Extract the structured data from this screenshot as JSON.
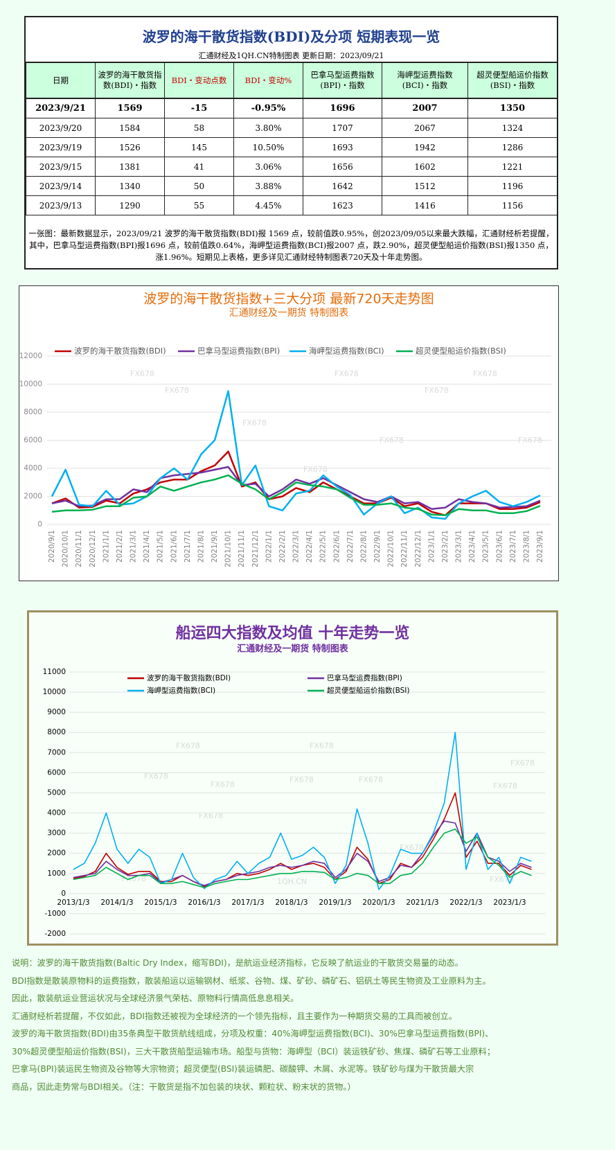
{
  "header": {
    "title": "波罗的海干散货指数(BDI)及分项  短期表现一览",
    "subtitle": "汇通财经及1QH.CN特制图表     更新日期：2023/09/21"
  },
  "table": {
    "columns": [
      "日期",
      "波罗的海干散货指数(BDI)・指数",
      "BDI・变动点数",
      "BDI・变动%",
      "巴拿马型运费指数(BPI)・指数",
      "海岬型运费指数(BCI)・指数",
      "超灵便型船运价指数(BSI)・指数"
    ],
    "rows": [
      [
        "2023/9/21",
        1569,
        -15,
        "-0.95%",
        1696,
        2007,
        1350
      ],
      [
        "2023/9/20",
        1584,
        58,
        "3.80%",
        1707,
        2067,
        1324
      ],
      [
        "2023/9/19",
        1526,
        145,
        "10.50%",
        1693,
        1942,
        1286
      ],
      [
        "2023/9/15",
        1381,
        41,
        "3.06%",
        1656,
        1602,
        1221
      ],
      [
        "2023/9/14",
        1340,
        50,
        "3.88%",
        1642,
        1512,
        1196
      ],
      [
        "2023/9/13",
        1290,
        55,
        "4.45%",
        1623,
        1416,
        1156
      ]
    ]
  },
  "note": "一张图：最新数据显示，2023/09/21 波罗的海干散货指数(BDI)报 1569 点，较前值跌0.95%，创2023/09/05以来最大跌幅，汇通财经析若提醒，其中，巴拿马型运费指数(BPI)报1696 点，较前值跌0.64%，海岬型运费指数(BCI)报2007 点，跌2.90%，超灵便型船运价指数(BSI)报1350 点，涨1.96%。短期见上表格，更多详见汇通财经特制图表720天及十年走势图。",
  "watermarks": [
    "FX678",
    "1QH.CN"
  ],
  "chart_data": [
    {
      "type": "line",
      "title": "波罗的海干散货指数+三大分项  最新720天走势图",
      "subtitle": "汇通财经及一期货  特制图表",
      "categories": [
        "2020/9/1",
        "2020/10/1",
        "2020/11/1",
        "2020/12/1",
        "2021/1/1",
        "2021/2/1",
        "2021/3/1",
        "2021/4/1",
        "2021/5/1",
        "2021/6/1",
        "2021/7/1",
        "2021/8/1",
        "2021/9/1",
        "2021/10/1",
        "2021/11/1",
        "2021/12/1",
        "2022/1/1",
        "2022/2/1",
        "2022/3/1",
        "2022/4/1",
        "2022/5/1",
        "2022/6/1",
        "2022/7/1",
        "2022/8/1",
        "2022/9/1",
        "2022/10/1",
        "2022/11/1",
        "2022/12/1",
        "2023/1/1",
        "2023/2/1",
        "2023/3/1",
        "2023/4/1",
        "2023/5/1",
        "2023/6/1",
        "2023/7/1",
        "2023/8/1",
        "2023/9/1"
      ],
      "series": [
        {
          "name": "波罗的海干散货指数(BDI)",
          "color": "#c00000",
          "values": [
            1500,
            1850,
            1200,
            1250,
            1700,
            1500,
            2200,
            2500,
            3000,
            3200,
            3200,
            3800,
            4200,
            5200,
            2700,
            3000,
            1800,
            2000,
            2600,
            2300,
            3000,
            2500,
            2000,
            1500,
            1500,
            1900,
            1300,
            1500,
            900,
            650,
            1500,
            1500,
            1500,
            1100,
            1100,
            1200,
            1584
          ]
        },
        {
          "name": "巴拿马型运费指数(BPI)",
          "color": "#7030a0",
          "values": [
            1500,
            1700,
            1300,
            1350,
            1800,
            1800,
            2500,
            2300,
            3300,
            3500,
            3600,
            3700,
            3900,
            4100,
            2800,
            2900,
            2000,
            2500,
            3200,
            2900,
            3300,
            2800,
            2300,
            1800,
            1600,
            2000,
            1500,
            1600,
            1100,
            1200,
            1800,
            1600,
            1500,
            1200,
            1250,
            1300,
            1700
          ]
        },
        {
          "name": "海岬型运费指数(BCI)",
          "color": "#00b0f0",
          "values": [
            2000,
            3900,
            1400,
            1300,
            2400,
            1400,
            1500,
            2000,
            3300,
            4000,
            3200,
            5000,
            6000,
            9500,
            2800,
            4200,
            1300,
            1000,
            2200,
            2400,
            3500,
            2700,
            2100,
            700,
            1500,
            2000,
            800,
            1200,
            500,
            400,
            1500,
            2000,
            2400,
            1600,
            1300,
            1600,
            2067
          ]
        },
        {
          "name": "超灵便型船运价指数(BSI)",
          "color": "#00b050",
          "values": [
            900,
            1000,
            1000,
            1050,
            1300,
            1300,
            1900,
            2000,
            2700,
            2400,
            2700,
            3000,
            3200,
            3500,
            2900,
            2500,
            1800,
            2300,
            3000,
            2800,
            2700,
            2500,
            1900,
            1400,
            1400,
            1500,
            1200,
            1100,
            700,
            650,
            1100,
            1000,
            1000,
            800,
            800,
            950,
            1324
          ]
        }
      ],
      "ylim": [
        0,
        12000
      ],
      "yticks": [
        0,
        2000,
        4000,
        6000,
        8000,
        10000,
        12000
      ],
      "grid": true,
      "legend": "top"
    },
    {
      "type": "line",
      "title": "船运四大指数及均值 十年走势一览",
      "subtitle": "汇通财经及一期货 特制图表",
      "categories": [
        "2013/1/3",
        null,
        null,
        null,
        "2014/1/3",
        null,
        null,
        null,
        "2015/1/3",
        null,
        null,
        null,
        "2016/1/3",
        null,
        null,
        null,
        "2017/1/3",
        null,
        null,
        null,
        "2018/1/3",
        null,
        null,
        null,
        "2019/1/3",
        null,
        null,
        null,
        "2020/1/3",
        null,
        null,
        null,
        "2021/1/3",
        null,
        null,
        null,
        "2022/1/3",
        null,
        null,
        null,
        "2023/1/3",
        null,
        null
      ],
      "series": [
        {
          "name": "波罗的海干散货指数(BDI)",
          "color": "#c00000",
          "values": [
            750,
            850,
            1100,
            2000,
            1300,
            950,
            1100,
            1100,
            600,
            600,
            900,
            600,
            350,
            600,
            700,
            1000,
            900,
            1000,
            1200,
            1500,
            1200,
            1400,
            1500,
            1300,
            700,
            1100,
            2300,
            1700,
            500,
            700,
            1500,
            1300,
            1800,
            2700,
            3700,
            5000,
            1800,
            2600,
            1500,
            1500,
            900,
            1400,
            1200
          ]
        },
        {
          "name": "巴拿马型运费指数(BPI)",
          "color": "#7030a0",
          "values": [
            800,
            900,
            1000,
            1600,
            1200,
            900,
            900,
            1000,
            550,
            700,
            900,
            600,
            400,
            600,
            700,
            900,
            1000,
            1100,
            1300,
            1400,
            1300,
            1400,
            1600,
            1500,
            800,
            1200,
            2000,
            1600,
            600,
            800,
            1400,
            1300,
            2000,
            2900,
            3600,
            3500,
            2100,
            3000,
            1800,
            1600,
            1100,
            1500,
            1300
          ]
        },
        {
          "name": "海岬型运费指数(BCI)",
          "color": "#00b0f0",
          "values": [
            1200,
            1500,
            2500,
            4000,
            2200,
            1500,
            2200,
            1800,
            500,
            700,
            2000,
            800,
            250,
            700,
            900,
            1600,
            1000,
            1500,
            1800,
            3000,
            1700,
            1900,
            2300,
            1800,
            500,
            1400,
            4200,
            2500,
            200,
            900,
            2200,
            2000,
            2000,
            3000,
            4500,
            8000,
            1200,
            3000,
            1200,
            1800,
            500,
            1800,
            1600
          ]
        },
        {
          "name": "超灵便型船运价指数(BSI)",
          "color": "#00b050",
          "values": [
            700,
            800,
            900,
            1300,
            1000,
            700,
            900,
            900,
            500,
            500,
            600,
            450,
            300,
            500,
            600,
            700,
            700,
            800,
            900,
            1000,
            1000,
            1100,
            1100,
            1050,
            700,
            800,
            1000,
            900,
            500,
            500,
            900,
            1000,
            1500,
            2300,
            3000,
            3200,
            2500,
            2800,
            1800,
            1400,
            800,
            1100,
            900
          ]
        }
      ],
      "ylim": [
        -2000,
        11000
      ],
      "yticks": [
        -2000,
        -1000,
        0,
        1000,
        2000,
        3000,
        4000,
        5000,
        6000,
        7000,
        8000,
        9000,
        10000,
        11000
      ],
      "grid": true,
      "legend": "top"
    }
  ],
  "footer": [
    "说明：波罗的海干散货指数(Baltic Dry Index，缩写BDI)，是航运业经济指标，它反映了航运业的干散货交易量的动态。",
    "BDI指数是散装原物料的运费指数，散装船运以运输钢材、纸浆、谷物、煤、矿砂、磷矿石、铝矾土等民生物资及工业原料为主。",
    "因此，散装航运业营运状况与全球经济景气荣枯、原物料行情高低息息相关。",
    "汇通财经析若提醒，不仅如此，BDI指数还被视为全球经济的一个领先指标，且主要作为一种期货交易的工具而被创立。",
    "波罗的海干散货指数(BDI)由35条典型干散货航线组成，分项及权重：40%海岬型运费指数(BCI)、30%巴拿马型运费指数(BPI)、",
    "30%超灵便型船运价指数(BSI)，三大干散货船型运输市场。船型与货物：海岬型（BCI）装运铁矿砂、焦煤、磷矿石等工业原料；",
    "巴拿马(BPI)装运民生物资及谷物等大宗物资；超灵便型(BSI)装运磷肥、碳酸钾、木屑、水泥等。铁矿砂与煤为干散货最大宗",
    "商品，因此走势常与BDI相关。（注：干散货是指不加包装的块状、颗粒状、粉末状的货物。）"
  ]
}
